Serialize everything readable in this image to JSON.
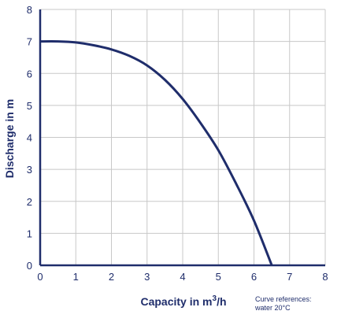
{
  "chart_data": {
    "type": "line",
    "xlabel": "Capacity in m",
    "xlabel_sup": "3",
    "xlabel_suffix": "/h",
    "ylabel": "Discharge in m",
    "xlim": [
      0,
      8
    ],
    "ylim": [
      0,
      8
    ],
    "x_ticks": [
      "0",
      "1",
      "2",
      "3",
      "4",
      "5",
      "6",
      "7",
      "8"
    ],
    "y_ticks": [
      "0",
      "1",
      "2",
      "3",
      "4",
      "5",
      "6",
      "7",
      "8"
    ],
    "grid": true,
    "note_line1": "Curve references:",
    "note_line2": "water 20°C",
    "series": [
      {
        "x": [
          0,
          0.5,
          1,
          1.5,
          2,
          2.5,
          3,
          3.5,
          4,
          4.5,
          5,
          5.5,
          6,
          6.5
        ],
        "y": [
          7.0,
          7.0,
          6.97,
          6.88,
          6.75,
          6.55,
          6.25,
          5.8,
          5.2,
          4.45,
          3.6,
          2.55,
          1.4,
          0.0
        ]
      }
    ],
    "colors": {
      "series": "#1f2d6b",
      "grid": "#c8c8c8",
      "axis": "#1f2d6b",
      "text": "#1f2d6b"
    }
  }
}
